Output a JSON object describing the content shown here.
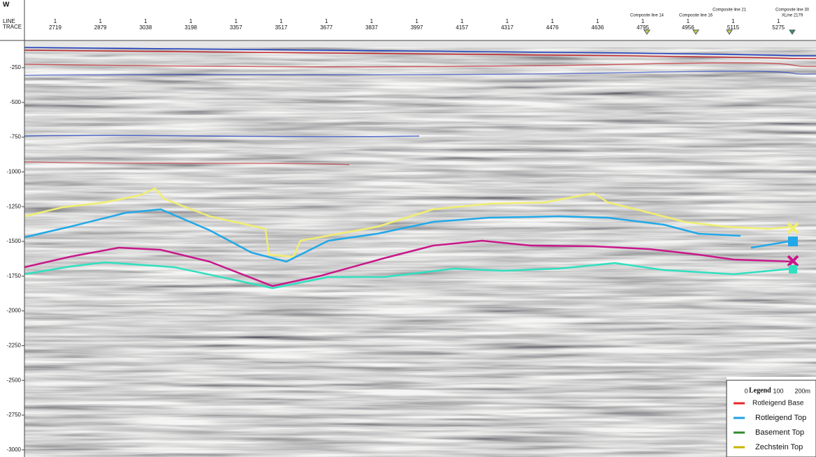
{
  "header": {
    "side": "W",
    "line_label": "LINE",
    "trace_label": "TRACE",
    "traces": [
      {
        "line": "1",
        "trace": "2719"
      },
      {
        "line": "1",
        "trace": "2879"
      },
      {
        "line": "1",
        "trace": "3038"
      },
      {
        "line": "1",
        "trace": "3198"
      },
      {
        "line": "1",
        "trace": "3357"
      },
      {
        "line": "1",
        "trace": "3517"
      },
      {
        "line": "1",
        "trace": "3677"
      },
      {
        "line": "1",
        "trace": "3837"
      },
      {
        "line": "1",
        "trace": "3997"
      },
      {
        "line": "1",
        "trace": "4157"
      },
      {
        "line": "1",
        "trace": "4317"
      },
      {
        "line": "1",
        "trace": "4476"
      },
      {
        "line": "1",
        "trace": "4636"
      },
      {
        "line": "1",
        "trace": "4795"
      },
      {
        "line": "1",
        "trace": "4956"
      },
      {
        "line": "1",
        "trace": "5115"
      },
      {
        "line": "1",
        "trace": "5275"
      }
    ]
  },
  "composite_lines": [
    "Composite line 14",
    "Composite line 16",
    "Composite line 21",
    "Composite line 30",
    "XLine 2179"
  ],
  "y_axis": [
    -250,
    -500,
    -750,
    -1000,
    -1250,
    -1500,
    -1750,
    -2000,
    -2250,
    -2500,
    -2750,
    -3000
  ],
  "scale_bar": [
    "0",
    "100",
    "200m"
  ],
  "legend": {
    "title": "Legend",
    "items": [
      {
        "label": "Rotleigend Base",
        "color": "#e8262a"
      },
      {
        "label": "Rotleigend Top",
        "color": "#1fa0e0"
      },
      {
        "label": "Basement Top",
        "color": "#2e8b2e"
      },
      {
        "label": "Zechstein Top",
        "color": "#c8b400"
      }
    ]
  }
}
